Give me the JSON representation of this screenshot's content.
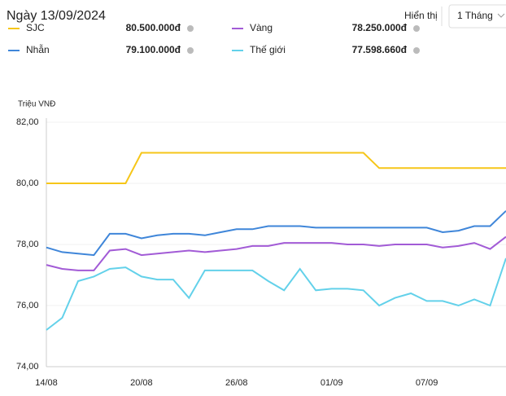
{
  "header": {
    "title": "Ngày 13/09/2024",
    "display_label": "Hiển thị",
    "range_option": "1 Tháng"
  },
  "chart_data": {
    "type": "line",
    "y_axis_label": "Triệu VNĐ",
    "categories": [
      "14/08",
      null,
      null,
      null,
      null,
      null,
      "20/08",
      null,
      null,
      null,
      null,
      null,
      "26/08",
      null,
      null,
      null,
      null,
      null,
      "01/09",
      null,
      null,
      null,
      null,
      null,
      "07/09",
      null,
      null,
      null,
      null,
      null
    ],
    "series": [
      {
        "name": "SJC",
        "color": "#f6c619",
        "price": "80.500.000đ",
        "values": [
          80,
          80,
          80,
          80,
          80,
          80,
          81,
          81,
          81,
          81,
          81,
          81,
          81,
          81,
          81,
          81,
          81,
          81,
          81,
          81,
          81,
          80.5,
          80.5,
          80.5,
          80.5,
          80.5,
          80.5,
          80.5,
          80.5,
          80.5
        ]
      },
      {
        "name": "Vàng",
        "color": "#a25bd6",
        "price": "78.250.000đ",
        "values": [
          77.33,
          77.2,
          77.15,
          77.15,
          77.8,
          77.85,
          77.65,
          77.7,
          77.75,
          77.8,
          77.75,
          77.8,
          77.85,
          77.95,
          77.95,
          78.05,
          78.05,
          78.05,
          78.05,
          78,
          78,
          77.95,
          78,
          78,
          78,
          77.9,
          77.95,
          78.05,
          77.85,
          78.25
        ]
      },
      {
        "name": "Nhẫn",
        "color": "#3f86d9",
        "price": "79.100.000đ",
        "values": [
          77.9,
          77.75,
          77.7,
          77.65,
          78.35,
          78.35,
          78.2,
          78.3,
          78.35,
          78.35,
          78.3,
          78.4,
          78.5,
          78.5,
          78.6,
          78.6,
          78.6,
          78.55,
          78.55,
          78.55,
          78.55,
          78.55,
          78.55,
          78.55,
          78.55,
          78.4,
          78.45,
          78.6,
          78.6,
          79.1
        ]
      },
      {
        "name": "Thế giới",
        "color": "#63d1ea",
        "price": "77.598.660đ",
        "values": [
          75.2,
          75.6,
          76.8,
          76.95,
          77.2,
          77.25,
          76.95,
          76.85,
          76.85,
          76.25,
          77.15,
          77.15,
          77.15,
          77.15,
          76.8,
          76.5,
          77.2,
          76.5,
          76.55,
          76.55,
          76.5,
          76,
          76.25,
          76.4,
          76.15,
          76.15,
          76,
          76.2,
          76,
          77.55
        ]
      }
    ],
    "ylim": [
      74,
      82
    ],
    "yticks": [
      {
        "value": 74,
        "label": "74,00"
      },
      {
        "value": 76,
        "label": "76,00"
      },
      {
        "value": 78,
        "label": "78,00"
      },
      {
        "value": 80,
        "label": "80,00"
      },
      {
        "value": 82,
        "label": "82,00"
      }
    ],
    "grid": true
  }
}
